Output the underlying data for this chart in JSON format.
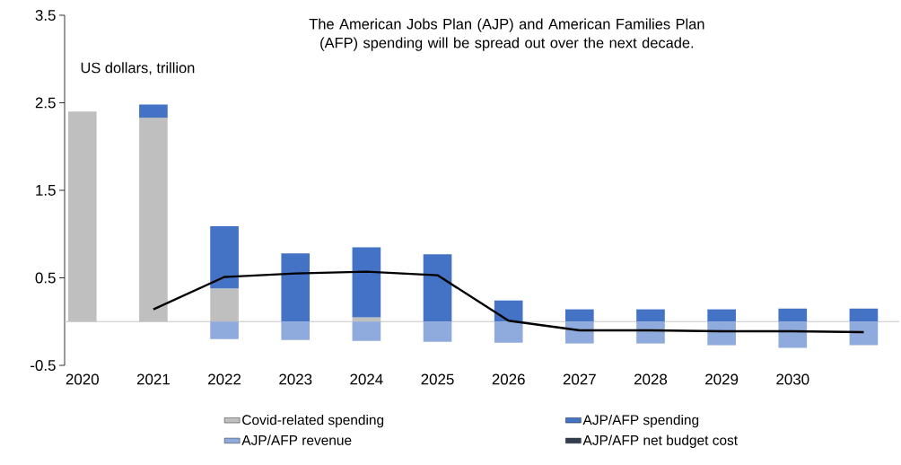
{
  "chart_data": {
    "type": "bar",
    "title": "The American Jobs Plan (AJP) and American Families Plan (AFP) spending will be spread out over the next decade.",
    "ylabel": "US dollars, trillion",
    "categories": [
      "2020",
      "2021",
      "2022",
      "2023",
      "2024",
      "2025",
      "2026",
      "2027",
      "2028",
      "2029",
      "2030",
      null
    ],
    "stacked": true,
    "series": [
      {
        "name": "Covid-related spending",
        "color": "#bfbfbf",
        "values": [
          2.4,
          2.33,
          0.38,
          0,
          0.05,
          0,
          0,
          0,
          0,
          0,
          0,
          0
        ]
      },
      {
        "name": "AJP/AFP spending",
        "color": "#4472c4",
        "values": [
          0,
          0.15,
          0.71,
          0.78,
          0.8,
          0.77,
          0.24,
          0.14,
          0.14,
          0.14,
          0.15,
          0.15
        ]
      },
      {
        "name": "AJP/AFP revenue",
        "color": "#8faadc",
        "values": [
          0,
          0,
          -0.2,
          -0.21,
          -0.22,
          -0.23,
          -0.24,
          -0.25,
          -0.25,
          -0.27,
          -0.3,
          -0.27
        ]
      },
      {
        "name": "AJP/AFP net budget cost",
        "type": "line",
        "color": "#000000",
        "values": [
          null,
          0.14,
          0.51,
          0.55,
          0.57,
          0.53,
          0.01,
          -0.1,
          -0.1,
          -0.11,
          -0.11,
          -0.12
        ]
      }
    ],
    "ylim": [
      -0.5,
      3.5
    ],
    "yticks": [
      -0.5,
      0.5,
      1.5,
      2.5,
      3.5
    ],
    "legend": "bottom"
  }
}
